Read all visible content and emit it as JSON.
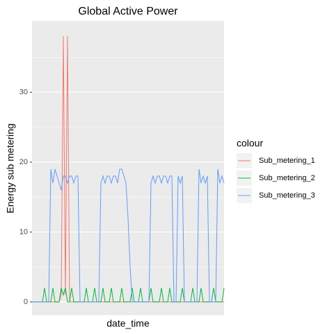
{
  "chart_data": {
    "type": "line",
    "title": "Global Active Power",
    "x_label": "date_time",
    "y_label": "Energy sub metering",
    "legend_title": "colour",
    "legend": "right",
    "grid": true,
    "ylim": [
      -1.9,
      40.2
    ],
    "yticks": [
      0,
      10,
      20,
      30
    ],
    "yminorticks": [
      5,
      15,
      25,
      35
    ],
    "series": [
      {
        "name": "Sub_metering_1",
        "color": "#F8766D",
        "values": [
          0,
          0,
          0,
          0,
          0,
          0,
          0,
          0,
          0,
          0,
          0,
          0,
          0,
          0,
          1,
          38,
          1,
          38,
          0,
          0,
          0,
          0,
          0,
          0,
          0,
          0,
          0,
          0,
          0,
          0,
          0,
          0,
          0,
          0,
          0,
          0,
          0,
          0,
          0,
          0,
          0,
          0,
          0,
          0,
          0,
          0,
          0,
          0,
          0,
          0,
          0,
          0,
          0,
          0,
          0,
          0,
          0,
          0,
          0,
          0,
          0,
          0,
          0,
          0,
          0,
          0,
          0,
          0,
          0,
          0,
          0,
          0,
          0,
          0,
          0,
          0,
          0,
          0,
          0,
          0,
          0,
          0,
          0,
          0,
          0,
          0,
          0,
          0,
          0,
          0,
          0,
          0,
          0
        ]
      },
      {
        "name": "Sub_metering_2",
        "color": "#00BA38",
        "values": [
          0,
          0,
          0,
          0,
          0,
          0,
          2,
          0,
          0,
          0,
          2,
          0,
          0,
          0,
          2,
          1,
          2,
          0,
          0,
          2,
          0,
          0,
          0,
          0,
          0,
          0,
          2,
          0,
          0,
          0,
          2,
          0,
          0,
          0,
          2,
          0,
          0,
          0,
          2,
          0,
          0,
          0,
          0,
          2,
          0,
          0,
          0,
          0,
          2,
          0,
          0,
          0,
          2,
          0,
          0,
          0,
          0,
          2,
          0,
          0,
          0,
          0,
          2,
          0,
          0,
          0,
          2,
          0,
          0,
          0,
          0,
          0,
          2,
          0,
          0,
          0,
          0,
          2,
          0,
          0,
          0,
          2,
          0,
          0,
          0,
          0,
          0,
          2,
          0,
          0,
          0,
          0,
          2
        ]
      },
      {
        "name": "Sub_metering_3",
        "color": "#619CFF",
        "values": [
          0,
          0,
          0,
          0,
          0,
          0,
          0,
          0,
          0,
          19,
          17,
          19,
          18,
          17,
          16,
          18,
          18,
          17,
          18,
          18,
          17,
          18,
          18,
          0,
          0,
          0,
          0,
          0,
          0,
          0,
          0,
          0,
          0,
          17,
          18,
          17,
          18,
          18,
          17,
          18,
          18,
          17,
          19,
          19,
          18,
          17,
          12,
          5,
          0,
          0,
          0,
          0,
          0,
          0,
          0,
          0,
          0,
          17,
          18,
          17,
          18,
          18,
          17,
          18,
          18,
          17,
          18,
          18,
          0,
          0,
          18,
          17,
          18,
          0,
          0,
          0,
          0,
          0,
          0,
          0,
          19,
          17,
          18,
          17,
          18,
          0,
          0,
          0,
          0,
          19,
          17,
          18,
          17
        ]
      }
    ]
  }
}
